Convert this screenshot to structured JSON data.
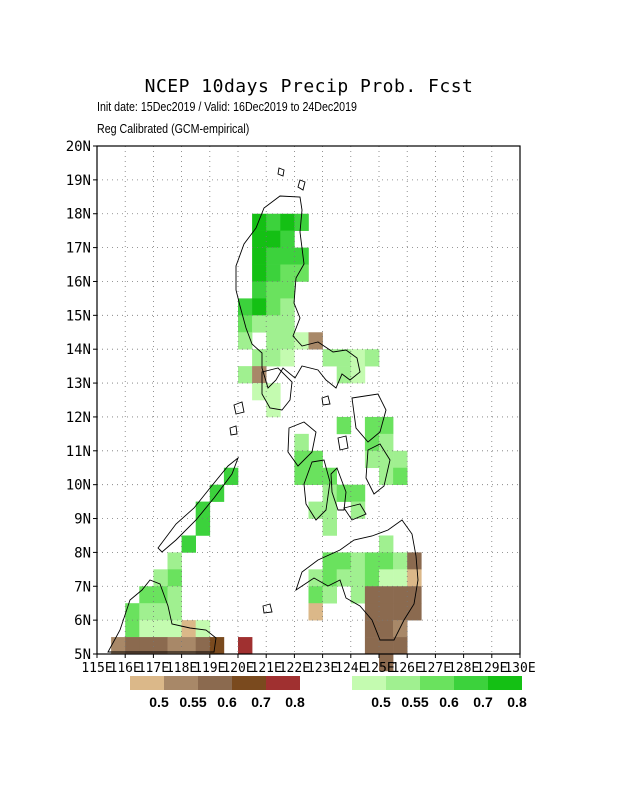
{
  "title": "NCEP 10days Precip Prob. Fcst",
  "subtitle_1": "Init date: 15Dec2019 / Valid: 16Dec2019 to 24Dec2019",
  "subtitle_2": "Reg Calibrated (GCM-empirical)",
  "map": {
    "lon_range": [
      115,
      130
    ],
    "lat_range": [
      5,
      20
    ],
    "grid_step_deg": 1,
    "gridlines": true,
    "lat_ticks": [
      "5N",
      "6N",
      "7N",
      "8N",
      "9N",
      "10N",
      "11N",
      "12N",
      "13N",
      "14N",
      "15N",
      "16N",
      "17N",
      "18N",
      "19N",
      "20N"
    ],
    "lon_ticks": [
      "115E",
      "116E",
      "117E",
      "118E",
      "119E",
      "120E",
      "121E",
      "122E",
      "123E",
      "124E",
      "125E",
      "126E",
      "127E",
      "128E",
      "129E",
      "130E"
    ]
  },
  "legend_dry": {
    "colors": [
      "#dbb889",
      "#a88868",
      "#8b6a4f",
      "#7a4a1e",
      "#a03030"
    ],
    "labels": [
      "0.5",
      "0.55",
      "0.6",
      "0.7",
      "0.8"
    ]
  },
  "legend_wet": {
    "colors": [
      "#c4fbb0",
      "#a0f090",
      "#6ae25e",
      "#3cd23c",
      "#14c014"
    ],
    "labels": [
      "0.5",
      "0.55",
      "0.6",
      "0.7",
      "0.8"
    ]
  },
  "probability_cells": {
    "cell_deg": 0.5,
    "note_levels": "0-4 = wet categories 0.5..0.8, 5-9 = dry categories 0.5..0.8",
    "cells": [
      [
        120.5,
        17.5,
        4
      ],
      [
        121.0,
        17.5,
        3
      ],
      [
        121.5,
        17.5,
        4
      ],
      [
        122.0,
        17.5,
        3
      ],
      [
        120.5,
        17.0,
        4
      ],
      [
        121.0,
        17.0,
        4
      ],
      [
        121.5,
        17.0,
        3
      ],
      [
        120.5,
        16.5,
        4
      ],
      [
        121.0,
        16.5,
        3
      ],
      [
        121.5,
        16.5,
        3
      ],
      [
        122.0,
        16.5,
        3
      ],
      [
        120.5,
        16.0,
        4
      ],
      [
        121.0,
        16.0,
        3
      ],
      [
        121.5,
        16.0,
        2
      ],
      [
        122.0,
        16.0,
        2
      ],
      [
        120.5,
        15.5,
        3
      ],
      [
        121.0,
        15.5,
        2
      ],
      [
        121.5,
        15.5,
        2
      ],
      [
        120.0,
        15.0,
        3
      ],
      [
        120.5,
        15.0,
        4
      ],
      [
        121.0,
        15.0,
        2
      ],
      [
        121.5,
        15.0,
        1
      ],
      [
        120.0,
        14.5,
        2
      ],
      [
        120.5,
        14.5,
        1
      ],
      [
        121.0,
        14.5,
        1
      ],
      [
        121.5,
        14.5,
        1
      ],
      [
        120.0,
        14.0,
        1
      ],
      [
        121.0,
        14.0,
        1
      ],
      [
        121.5,
        14.0,
        1
      ],
      [
        122.0,
        14.0,
        0
      ],
      [
        122.5,
        14.0,
        6
      ],
      [
        120.5,
        13.5,
        1
      ],
      [
        121.0,
        13.5,
        1
      ],
      [
        121.5,
        13.5,
        0
      ],
      [
        123.0,
        13.5,
        1
      ],
      [
        123.5,
        13.5,
        1
      ],
      [
        124.0,
        13.5,
        0
      ],
      [
        124.5,
        13.5,
        1
      ],
      [
        120.0,
        13.0,
        1
      ],
      [
        120.5,
        13.0,
        6
      ],
      [
        123.5,
        13.0,
        1
      ],
      [
        124.0,
        13.0,
        0
      ],
      [
        120.5,
        12.5,
        0
      ],
      [
        121.0,
        12.5,
        0
      ],
      [
        121.0,
        12.0,
        0
      ],
      [
        123.5,
        11.5,
        2
      ],
      [
        124.5,
        11.5,
        2
      ],
      [
        125.0,
        11.5,
        2
      ],
      [
        122.0,
        11.0,
        1
      ],
      [
        124.5,
        11.0,
        2
      ],
      [
        125.0,
        11.0,
        1
      ],
      [
        122.0,
        10.5,
        2
      ],
      [
        122.5,
        10.5,
        2
      ],
      [
        124.5,
        10.5,
        1
      ],
      [
        125.0,
        10.5,
        1
      ],
      [
        125.5,
        10.5,
        1
      ],
      [
        122.0,
        10.0,
        2
      ],
      [
        122.5,
        10.0,
        2
      ],
      [
        123.0,
        10.0,
        2
      ],
      [
        125.0,
        10.0,
        1
      ],
      [
        125.5,
        10.0,
        2
      ],
      [
        123.0,
        9.5,
        1
      ],
      [
        123.5,
        9.5,
        2
      ],
      [
        124.0,
        9.5,
        2
      ],
      [
        122.5,
        9.0,
        1
      ],
      [
        123.0,
        9.0,
        1
      ],
      [
        124.0,
        9.0,
        1
      ],
      [
        123.0,
        8.5,
        1
      ],
      [
        125.0,
        8.0,
        1
      ],
      [
        123.0,
        7.5,
        2
      ],
      [
        123.5,
        7.5,
        2
      ],
      [
        124.0,
        7.5,
        1
      ],
      [
        124.5,
        7.5,
        2
      ],
      [
        125.0,
        7.5,
        2
      ],
      [
        125.5,
        7.5,
        1
      ],
      [
        126.0,
        7.5,
        7
      ],
      [
        122.5,
        7.0,
        1
      ],
      [
        123.0,
        7.0,
        2
      ],
      [
        123.5,
        7.0,
        1
      ],
      [
        124.0,
        7.0,
        1
      ],
      [
        124.5,
        7.0,
        2
      ],
      [
        125.0,
        7.0,
        0
      ],
      [
        125.5,
        7.0,
        0
      ],
      [
        126.0,
        7.0,
        5
      ],
      [
        122.5,
        6.5,
        2
      ],
      [
        123.0,
        6.5,
        1
      ],
      [
        124.0,
        6.5,
        1
      ],
      [
        124.5,
        6.5,
        7
      ],
      [
        125.0,
        6.5,
        7
      ],
      [
        125.5,
        6.5,
        7
      ],
      [
        126.0,
        6.5,
        7
      ],
      [
        122.5,
        6.0,
        5
      ],
      [
        124.5,
        6.0,
        7
      ],
      [
        125.0,
        6.0,
        7
      ],
      [
        125.5,
        6.0,
        7
      ],
      [
        126.0,
        6.0,
        7
      ],
      [
        124.5,
        5.5,
        7
      ],
      [
        125.0,
        5.5,
        7
      ],
      [
        125.5,
        5.5,
        6
      ],
      [
        124.5,
        5.0,
        7
      ],
      [
        125.0,
        5.0,
        7
      ],
      [
        125.5,
        5.0,
        7
      ],
      [
        125.0,
        4.5,
        7
      ],
      [
        119.5,
        10.0,
        3
      ],
      [
        119.0,
        9.5,
        3
      ],
      [
        118.5,
        9.0,
        3
      ],
      [
        118.5,
        8.5,
        3
      ],
      [
        118.0,
        8.0,
        3
      ],
      [
        117.5,
        7.5,
        1
      ],
      [
        117.5,
        7.0,
        2
      ],
      [
        117.0,
        7.0,
        1
      ],
      [
        116.5,
        6.5,
        2
      ],
      [
        117.0,
        6.5,
        2
      ],
      [
        117.5,
        6.5,
        1
      ],
      [
        116.0,
        6.0,
        2
      ],
      [
        116.5,
        6.0,
        1
      ],
      [
        117.0,
        6.0,
        1
      ],
      [
        117.5,
        6.0,
        1
      ],
      [
        116.0,
        5.5,
        2
      ],
      [
        116.5,
        5.5,
        0
      ],
      [
        117.0,
        5.5,
        0
      ],
      [
        117.5,
        5.5,
        0
      ],
      [
        118.0,
        5.5,
        5
      ],
      [
        118.5,
        5.5,
        0
      ],
      [
        115.5,
        5.0,
        6
      ],
      [
        116.0,
        5.0,
        7
      ],
      [
        116.5,
        5.0,
        7
      ],
      [
        117.0,
        5.0,
        7
      ],
      [
        117.5,
        5.0,
        6
      ],
      [
        118.0,
        5.0,
        6
      ],
      [
        118.5,
        5.0,
        7
      ],
      [
        119.0,
        5.0,
        8
      ],
      [
        120.0,
        5.0,
        9
      ]
    ]
  }
}
